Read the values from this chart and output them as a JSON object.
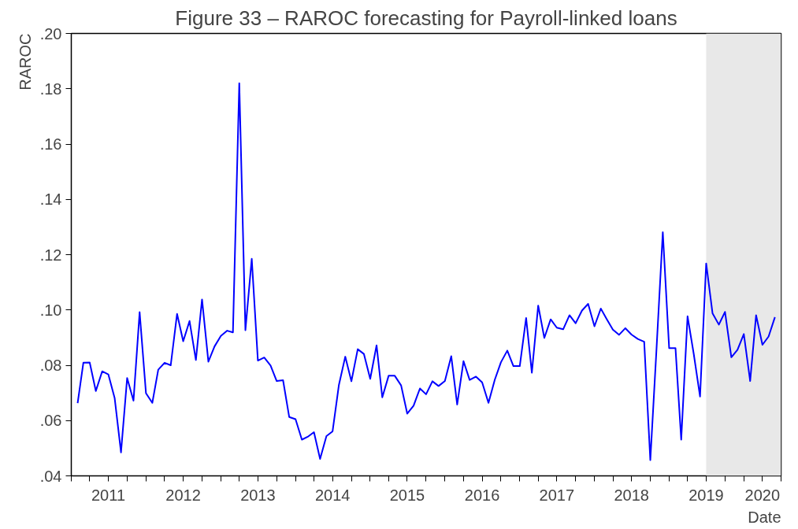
{
  "chart_data": {
    "type": "line",
    "title": "Figure 33 – RAROC forecasting for Payroll-linked loans",
    "xlabel": "Date",
    "ylabel": "RAROC",
    "x": [
      "2011-02",
      "2011-03",
      "2011-04",
      "2011-05",
      "2011-06",
      "2011-07",
      "2011-08",
      "2011-09",
      "2011-10",
      "2011-11",
      "2011-12",
      "2012-01",
      "2012-02",
      "2012-03",
      "2012-04",
      "2012-05",
      "2012-06",
      "2012-07",
      "2012-08",
      "2012-09",
      "2012-10",
      "2012-11",
      "2012-12",
      "2013-01",
      "2013-02",
      "2013-03",
      "2013-04",
      "2013-05",
      "2013-06",
      "2013-07",
      "2013-08",
      "2013-09",
      "2013-10",
      "2013-11",
      "2013-12",
      "2014-01",
      "2014-02",
      "2014-03",
      "2014-04",
      "2014-05",
      "2014-06",
      "2014-07",
      "2014-08",
      "2014-09",
      "2014-10",
      "2014-11",
      "2014-12",
      "2015-01",
      "2015-02",
      "2015-03",
      "2015-04",
      "2015-05",
      "2015-06",
      "2015-07",
      "2015-08",
      "2015-09",
      "2015-10",
      "2015-11",
      "2015-12",
      "2016-01",
      "2016-02",
      "2016-03",
      "2016-04",
      "2016-05",
      "2016-06",
      "2016-07",
      "2016-08",
      "2016-09",
      "2016-10",
      "2016-11",
      "2016-12",
      "2017-01",
      "2017-02",
      "2017-03",
      "2017-04",
      "2017-05",
      "2017-06",
      "2017-07",
      "2017-08",
      "2017-09",
      "2017-10",
      "2017-11",
      "2017-12",
      "2018-01",
      "2018-02",
      "2018-03",
      "2018-04",
      "2018-05",
      "2018-06",
      "2018-07",
      "2018-08",
      "2018-09",
      "2018-10",
      "2018-11",
      "2018-12",
      "2019-01",
      "2019-02",
      "2019-03",
      "2019-04",
      "2019-05",
      "2019-06",
      "2019-07",
      "2019-08",
      "2019-09",
      "2019-10",
      "2019-11",
      "2019-12",
      "2020-01",
      "2020-02",
      "2020-03",
      "2020-04",
      "2020-05",
      "2020-06"
    ],
    "series": [
      {
        "color": "#0000ff",
        "values": [
          0.0663,
          0.0809,
          0.081,
          0.0707,
          0.0778,
          0.0767,
          0.0681,
          0.0485,
          0.0754,
          0.0672,
          0.0992,
          0.0699,
          0.0664,
          0.0784,
          0.0809,
          0.08,
          0.0986,
          0.0887,
          0.096,
          0.0819,
          0.1038,
          0.0813,
          0.0868,
          0.0906,
          0.0925,
          0.0919,
          0.182,
          0.0927,
          0.1185,
          0.0817,
          0.0828,
          0.0799,
          0.0743,
          0.0746,
          0.0613,
          0.0605,
          0.0531,
          0.0541,
          0.0558,
          0.0461,
          0.0544,
          0.0561,
          0.0729,
          0.0831,
          0.0742,
          0.0858,
          0.0841,
          0.0751,
          0.0872,
          0.0684,
          0.0762,
          0.0762,
          0.0727,
          0.0625,
          0.0654,
          0.0716,
          0.0695,
          0.0742,
          0.0725,
          0.0743,
          0.0833,
          0.0658,
          0.0815,
          0.0747,
          0.0759,
          0.0738,
          0.0664,
          0.0748,
          0.0811,
          0.0853,
          0.0797,
          0.0797,
          0.0971,
          0.0773,
          0.1016,
          0.0899,
          0.0966,
          0.0936,
          0.093,
          0.0981,
          0.0952,
          0.0998,
          0.1022,
          0.0941,
          0.1005,
          0.0968,
          0.0929,
          0.091,
          0.0934,
          0.0911,
          0.0895,
          0.0885,
          0.0457,
          0.0869,
          0.1281,
          0.0862,
          0.0862,
          0.0531,
          0.0977,
          0.0842,
          0.0687,
          0.1168,
          0.0988,
          0.0947,
          0.0993,
          0.0829,
          0.0856,
          0.0913,
          0.0743,
          0.0981,
          0.0874,
          0.0904,
          0.0974
        ]
      }
    ],
    "xlim": [
      "2011-01",
      "2020-07"
    ],
    "xticks": [
      {
        "value": "2011-01",
        "label": null
      },
      {
        "value": "2011-04",
        "label": null
      },
      {
        "value": "2011-07",
        "label": "2011"
      },
      {
        "value": "2011-10",
        "label": null
      },
      {
        "value": "2012-01",
        "label": null
      },
      {
        "value": "2012-04",
        "label": null
      },
      {
        "value": "2012-07",
        "label": "2012"
      },
      {
        "value": "2012-10",
        "label": null
      },
      {
        "value": "2013-01",
        "label": null
      },
      {
        "value": "2013-04",
        "label": null
      },
      {
        "value": "2013-07",
        "label": "2013"
      },
      {
        "value": "2013-10",
        "label": null
      },
      {
        "value": "2014-01",
        "label": null
      },
      {
        "value": "2014-04",
        "label": null
      },
      {
        "value": "2014-07",
        "label": "2014"
      },
      {
        "value": "2014-10",
        "label": null
      },
      {
        "value": "2015-01",
        "label": null
      },
      {
        "value": "2015-04",
        "label": null
      },
      {
        "value": "2015-07",
        "label": "2015"
      },
      {
        "value": "2015-10",
        "label": null
      },
      {
        "value": "2016-01",
        "label": null
      },
      {
        "value": "2016-04",
        "label": null
      },
      {
        "value": "2016-07",
        "label": "2016"
      },
      {
        "value": "2016-10",
        "label": null
      },
      {
        "value": "2017-01",
        "label": null
      },
      {
        "value": "2017-04",
        "label": null
      },
      {
        "value": "2017-07",
        "label": "2017"
      },
      {
        "value": "2017-10",
        "label": null
      },
      {
        "value": "2018-01",
        "label": null
      },
      {
        "value": "2018-04",
        "label": null
      },
      {
        "value": "2018-07",
        "label": "2018"
      },
      {
        "value": "2018-10",
        "label": null
      },
      {
        "value": "2019-01",
        "label": null
      },
      {
        "value": "2019-04",
        "label": null
      },
      {
        "value": "2019-07",
        "label": "2019"
      },
      {
        "value": "2019-10",
        "label": null
      },
      {
        "value": "2020-01",
        "label": null
      },
      {
        "value": "2020-04",
        "label": "2020"
      },
      {
        "value": "2020-07",
        "label": null
      }
    ],
    "ylim": [
      0.04,
      0.2
    ],
    "yticks": [
      {
        "value": 0.04,
        "label": ".04"
      },
      {
        "value": 0.06,
        "label": ".06"
      },
      {
        "value": 0.08,
        "label": ".08"
      },
      {
        "value": 0.1,
        "label": ".10"
      },
      {
        "value": 0.12,
        "label": ".12"
      },
      {
        "value": 0.14,
        "label": ".14"
      },
      {
        "value": 0.16,
        "label": ".16"
      },
      {
        "value": 0.18,
        "label": ".18"
      },
      {
        "value": 0.2,
        "label": ".20"
      }
    ],
    "bands": [
      {
        "axis": "x",
        "from": "2019-07",
        "to": "2020-07",
        "color": "#e8e8e8"
      }
    ],
    "grid": false,
    "line_style": "solid"
  }
}
